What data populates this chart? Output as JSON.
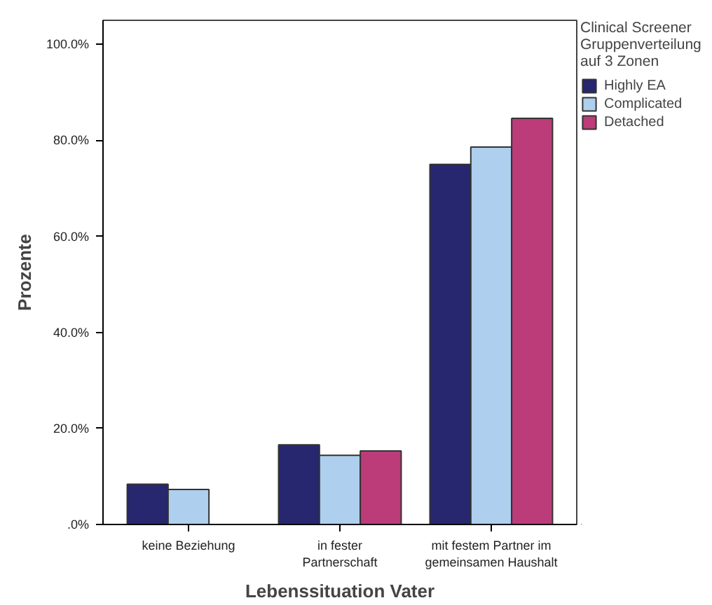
{
  "chart_data": {
    "type": "bar",
    "xlabel": "Lebenssituation Vater",
    "ylabel": "Prozente",
    "legend_title": "Clinical Screener\nGruppenverteilung\nauf 3 Zonen",
    "categories": [
      "keine Beziehung",
      "in fester Partnerschaft",
      "mit festem Partner im gemeinsamen Haushalt"
    ],
    "series": [
      {
        "name": "Highly EA",
        "color": "#26276e",
        "values": [
          8.4,
          16.6,
          75.0
        ]
      },
      {
        "name": "Complicated",
        "color": "#aecfee",
        "values": [
          7.3,
          14.4,
          78.6
        ]
      },
      {
        "name": "Detached",
        "color": "#bc3c7a",
        "values": [
          0,
          15.3,
          84.6
        ]
      }
    ],
    "ylim": [
      0,
      105
    ],
    "yticks": [
      {
        "value": 0,
        "label": ".0%"
      },
      {
        "value": 20,
        "label": "20.0%"
      },
      {
        "value": 40,
        "label": "40.0%"
      },
      {
        "value": 60,
        "label": "60.0%"
      },
      {
        "value": 80,
        "label": "80.0%"
      },
      {
        "value": 100,
        "label": "100.0%"
      }
    ],
    "legend": "right"
  }
}
